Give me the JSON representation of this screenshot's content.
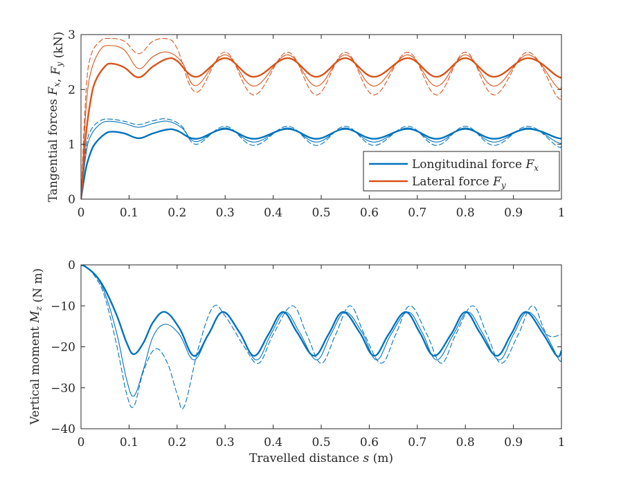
{
  "colors": {
    "blue": "#0072BD",
    "orange": "#D95319",
    "axis": "#262626"
  },
  "chart_data": [
    {
      "type": "line",
      "ylabel": "Tangential forces F_x, F_y (kN)",
      "xlabel": "",
      "xlim": [
        0,
        1
      ],
      "ylim": [
        0,
        3
      ],
      "xticks": [
        "0",
        "0.1",
        "0.2",
        "0.3",
        "0.4",
        "0.5",
        "0.6",
        "0.7",
        "0.8",
        "0.9",
        "1"
      ],
      "yticks": [
        "0",
        "1",
        "2",
        "3"
      ],
      "legend": {
        "placement": "bottom-right",
        "entries": [
          "Longitudinal force F_x",
          "Lateral force F_y"
        ]
      },
      "grid": false,
      "series": [
        {
          "name": "Longitudinal force F_x",
          "color": "#0072BD",
          "style": "thick-solid",
          "x": [
            0,
            0.01,
            0.02,
            0.03,
            0.05,
            0.065,
            0.09,
            0.12,
            0.15,
            0.18,
            0.2,
            0.24,
            0.3,
            0.36,
            0.43,
            0.49,
            0.55,
            0.61,
            0.68,
            0.74,
            0.8,
            0.86,
            0.93,
            0.99,
            1.0
          ],
          "y": [
            0,
            0.55,
            0.85,
            1.02,
            1.19,
            1.23,
            1.2,
            1.11,
            1.2,
            1.27,
            1.25,
            1.1,
            1.28,
            1.1,
            1.28,
            1.1,
            1.28,
            1.1,
            1.28,
            1.1,
            1.28,
            1.1,
            1.28,
            1.12,
            1.11
          ]
        },
        {
          "name": "",
          "color": "#0072BD",
          "style": "thin-solid",
          "x": [
            0,
            0.01,
            0.02,
            0.04,
            0.06,
            0.09,
            0.12,
            0.15,
            0.18,
            0.21,
            0.24,
            0.3,
            0.36,
            0.43,
            0.49,
            0.55,
            0.61,
            0.68,
            0.74,
            0.8,
            0.86,
            0.93,
            0.99,
            1.0
          ],
          "y": [
            0,
            0.8,
            1.15,
            1.37,
            1.42,
            1.38,
            1.31,
            1.38,
            1.42,
            1.3,
            1.05,
            1.3,
            1.04,
            1.3,
            1.04,
            1.3,
            1.04,
            1.3,
            1.04,
            1.3,
            1.04,
            1.3,
            1.04,
            1.03
          ]
        },
        {
          "name": "",
          "color": "#0072BD",
          "style": "dashed",
          "x": [
            0,
            0.01,
            0.02,
            0.04,
            0.06,
            0.09,
            0.12,
            0.15,
            0.18,
            0.21,
            0.24,
            0.3,
            0.36,
            0.43,
            0.49,
            0.55,
            0.61,
            0.68,
            0.74,
            0.8,
            0.86,
            0.93,
            0.99,
            1.0
          ],
          "y": [
            0,
            0.9,
            1.25,
            1.43,
            1.46,
            1.42,
            1.36,
            1.43,
            1.46,
            1.33,
            1.0,
            1.33,
            0.98,
            1.33,
            0.98,
            1.33,
            0.98,
            1.33,
            0.98,
            1.33,
            0.98,
            1.33,
            0.97,
            0.97
          ]
        },
        {
          "name": "Lateral force F_y",
          "color": "#D95319",
          "style": "thick-solid",
          "x": [
            0,
            0.01,
            0.02,
            0.03,
            0.05,
            0.065,
            0.09,
            0.12,
            0.15,
            0.18,
            0.2,
            0.24,
            0.3,
            0.36,
            0.43,
            0.49,
            0.55,
            0.61,
            0.68,
            0.74,
            0.8,
            0.86,
            0.93,
            0.99,
            1.0
          ],
          "y": [
            0,
            1.15,
            1.8,
            2.15,
            2.42,
            2.47,
            2.4,
            2.22,
            2.42,
            2.56,
            2.52,
            2.23,
            2.57,
            2.23,
            2.57,
            2.23,
            2.57,
            2.23,
            2.57,
            2.23,
            2.57,
            2.23,
            2.57,
            2.25,
            2.22
          ]
        },
        {
          "name": "",
          "color": "#D95319",
          "style": "thin-solid",
          "x": [
            0,
            0.01,
            0.02,
            0.04,
            0.06,
            0.09,
            0.12,
            0.15,
            0.18,
            0.21,
            0.24,
            0.3,
            0.36,
            0.43,
            0.49,
            0.55,
            0.61,
            0.68,
            0.74,
            0.8,
            0.86,
            0.93,
            0.99,
            1.0
          ],
          "y": [
            0,
            1.6,
            2.3,
            2.72,
            2.8,
            2.72,
            2.38,
            2.6,
            2.68,
            2.5,
            2.07,
            2.63,
            2.06,
            2.63,
            2.06,
            2.63,
            2.06,
            2.63,
            2.06,
            2.63,
            2.06,
            2.63,
            2.05,
            2.05
          ]
        },
        {
          "name": "",
          "color": "#D95319",
          "style": "dashed",
          "x": [
            0,
            0.01,
            0.02,
            0.04,
            0.06,
            0.09,
            0.12,
            0.15,
            0.18,
            0.2,
            0.24,
            0.3,
            0.36,
            0.43,
            0.49,
            0.55,
            0.61,
            0.68,
            0.74,
            0.8,
            0.86,
            0.93,
            0.99,
            1.0
          ],
          "y": [
            0,
            1.9,
            2.6,
            2.88,
            2.93,
            2.88,
            2.65,
            2.88,
            2.92,
            2.75,
            1.95,
            2.68,
            1.9,
            2.68,
            1.9,
            2.68,
            1.9,
            2.68,
            1.9,
            2.68,
            1.9,
            2.68,
            1.88,
            1.9
          ]
        }
      ]
    },
    {
      "type": "line",
      "ylabel": "Vertical moment M_z (N m)",
      "xlabel": "Travelled distance s (m)",
      "xlim": [
        0,
        1
      ],
      "ylim": [
        -40,
        0
      ],
      "xticks": [
        "0",
        "0.1",
        "0.2",
        "0.3",
        "0.4",
        "0.5",
        "0.6",
        "0.7",
        "0.8",
        "0.9",
        "1"
      ],
      "yticks": [
        "0",
        "−10",
        "−20",
        "−30",
        "−40"
      ],
      "grid": false,
      "series": [
        {
          "name": "",
          "color": "#0072BD",
          "style": "thick-solid",
          "x": [
            0,
            0.01,
            0.03,
            0.05,
            0.075,
            0.095,
            0.11,
            0.13,
            0.15,
            0.175,
            0.205,
            0.235,
            0.265,
            0.295,
            0.33,
            0.36,
            0.39,
            0.42,
            0.45,
            0.485,
            0.515,
            0.545,
            0.58,
            0.61,
            0.64,
            0.675,
            0.705,
            0.735,
            0.77,
            0.8,
            0.83,
            0.865,
            0.895,
            0.925,
            0.96,
            0.99,
            1.0
          ],
          "y": [
            0,
            -0.5,
            -2.5,
            -6,
            -12.5,
            -19,
            -21.8,
            -19,
            -14,
            -11.5,
            -15.5,
            -22.2,
            -17,
            -11.5,
            -16.5,
            -22.2,
            -17,
            -11.5,
            -16.5,
            -22.2,
            -17,
            -11.5,
            -16.5,
            -22.2,
            -17,
            -11.5,
            -16.5,
            -22.2,
            -17,
            -11.5,
            -16.5,
            -22.2,
            -17,
            -11.5,
            -16.5,
            -22.2,
            -21
          ]
        },
        {
          "name": "",
          "color": "#0072BD",
          "style": "thin-solid",
          "x": [
            0,
            0.01,
            0.03,
            0.05,
            0.075,
            0.095,
            0.11,
            0.13,
            0.15,
            0.175,
            0.205,
            0.235,
            0.265,
            0.295,
            0.33,
            0.365,
            0.395,
            0.425,
            0.455,
            0.49,
            0.52,
            0.55,
            0.585,
            0.615,
            0.645,
            0.68,
            0.71,
            0.74,
            0.775,
            0.805,
            0.835,
            0.87,
            0.9,
            0.93,
            0.965,
            0.995,
            1.0
          ],
          "y": [
            0,
            -0.5,
            -2.6,
            -7,
            -17,
            -28,
            -32,
            -25.5,
            -17.5,
            -14.5,
            -17,
            -23.2,
            -17,
            -11.5,
            -16.5,
            -23.2,
            -17,
            -11.5,
            -16.5,
            -23.2,
            -17,
            -11.5,
            -16.5,
            -23.2,
            -17,
            -11.5,
            -16.5,
            -23.2,
            -17,
            -11.5,
            -16.5,
            -23.2,
            -17,
            -11.5,
            -16.5,
            -23.2,
            -22.5
          ]
        },
        {
          "name": "",
          "color": "#0072BD",
          "style": "dashed",
          "x": [
            0,
            0.01,
            0.03,
            0.05,
            0.075,
            0.095,
            0.11,
            0.13,
            0.155,
            0.18,
            0.2,
            0.215,
            0.245,
            0.275,
            0.3,
            0.34,
            0.37,
            0.4,
            0.44,
            0.47,
            0.5,
            0.53,
            0.56,
            0.59,
            0.625,
            0.655,
            0.685,
            0.72,
            0.75,
            0.78,
            0.815,
            0.845,
            0.875,
            0.91,
            0.94,
            0.97,
            1.0
          ],
          "y": [
            0,
            -0.5,
            -3,
            -8,
            -20,
            -31.5,
            -34.5,
            -26,
            -20.5,
            -24,
            -31.5,
            -34.5,
            -20,
            -10.3,
            -12.5,
            -20,
            -24,
            -17,
            -10,
            -17,
            -24,
            -17,
            -10,
            -17,
            -24,
            -17,
            -10,
            -17,
            -24,
            -17,
            -10,
            -17,
            -24,
            -17,
            -10,
            -17,
            -17
          ]
        }
      ]
    }
  ]
}
